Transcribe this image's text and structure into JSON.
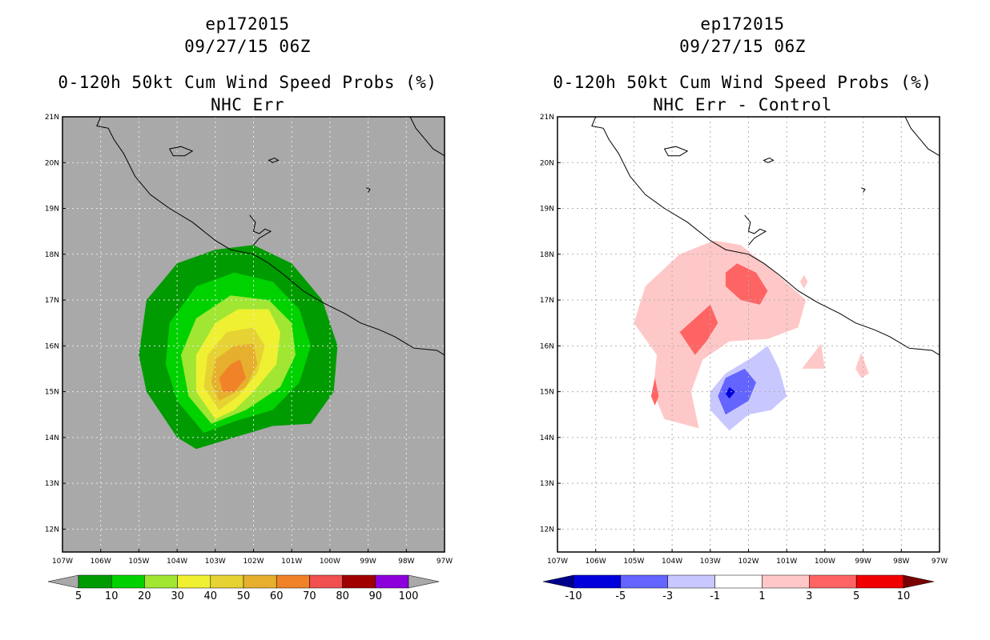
{
  "panels": [
    {
      "storm": "ep172015",
      "datetime": "09/27/15 06Z",
      "product": "0-120h 50kt Cum Wind Speed Probs (%)",
      "subtitle": "NHC Err",
      "background": "#a9a9a9",
      "grid_color": "#e8e8e8",
      "coast_color": "#000000"
    },
    {
      "storm": "ep172015",
      "datetime": "09/27/15 06Z",
      "product": "0-120h 50kt Cum Wind Speed Probs (%)",
      "subtitle": "NHC Err - Control",
      "background": "#ffffff",
      "grid_color": "#b0b0b0",
      "coast_color": "#000000"
    }
  ],
  "chart_data": [
    {
      "type": "filled-contour-map",
      "title": "0-120h 50kt Cum Wind Speed Probs (%)",
      "subtitle": "NHC Err",
      "xlim": [
        -107,
        -97
      ],
      "ylim": [
        11.5,
        21
      ],
      "x_tick_labels": [
        "107W",
        "106W",
        "105W",
        "104W",
        "103W",
        "102W",
        "101W",
        "100W",
        "99W",
        "98W",
        "97W"
      ],
      "y_tick_labels": [
        "12N",
        "13N",
        "14N",
        "15N",
        "16N",
        "17N",
        "18N",
        "19N",
        "20N",
        "21N"
      ],
      "colorbar": {
        "labels": [
          "5",
          "10",
          "20",
          "30",
          "40",
          "50",
          "60",
          "70",
          "80",
          "90",
          "100"
        ],
        "colors": [
          "#009b00",
          "#00d200",
          "#a0e632",
          "#f0f032",
          "#e6d232",
          "#e6af2d",
          "#f08228",
          "#f05050",
          "#a00000",
          "#8c00dc"
        ],
        "under_color": "#a9a9a9",
        "over_color": "#a9a9a9"
      },
      "contours": [
        {
          "level": 5,
          "color": "#009b00",
          "polygon": [
            [
              -103.5,
              13.75
            ],
            [
              -104.0,
              14.0
            ],
            [
              -104.8,
              15.0
            ],
            [
              -105.0,
              15.8
            ],
            [
              -104.8,
              17.0
            ],
            [
              -104.0,
              17.8
            ],
            [
              -103.0,
              18.1
            ],
            [
              -102.0,
              18.2
            ],
            [
              -101.0,
              17.8
            ],
            [
              -100.2,
              17.0
            ],
            [
              -99.8,
              16.0
            ],
            [
              -99.9,
              15.0
            ],
            [
              -100.5,
              14.3
            ],
            [
              -101.5,
              14.25
            ],
            [
              -102.5,
              14.0
            ]
          ]
        },
        {
          "level": 10,
          "color": "#00d200",
          "polygon": [
            [
              -103.3,
              14.1
            ],
            [
              -104.0,
              14.8
            ],
            [
              -104.3,
              15.6
            ],
            [
              -104.2,
              16.5
            ],
            [
              -103.5,
              17.3
            ],
            [
              -102.5,
              17.6
            ],
            [
              -101.5,
              17.4
            ],
            [
              -100.8,
              16.8
            ],
            [
              -100.5,
              16.0
            ],
            [
              -100.8,
              15.2
            ],
            [
              -101.5,
              14.6
            ],
            [
              -102.5,
              14.35
            ]
          ]
        },
        {
          "level": 20,
          "color": "#a0e632",
          "polygon": [
            [
              -103.1,
              14.3
            ],
            [
              -103.7,
              14.9
            ],
            [
              -103.9,
              15.8
            ],
            [
              -103.5,
              16.6
            ],
            [
              -102.6,
              17.1
            ],
            [
              -101.6,
              17.0
            ],
            [
              -101.0,
              16.5
            ],
            [
              -100.9,
              15.8
            ],
            [
              -101.3,
              15.1
            ],
            [
              -102.2,
              14.6
            ]
          ]
        },
        {
          "level": 30,
          "color": "#f0f032",
          "polygon": [
            [
              -103.0,
              14.4
            ],
            [
              -103.5,
              15.0
            ],
            [
              -103.5,
              15.8
            ],
            [
              -103.0,
              16.5
            ],
            [
              -102.4,
              16.8
            ],
            [
              -101.6,
              16.8
            ],
            [
              -101.3,
              16.3
            ],
            [
              -101.4,
              15.6
            ],
            [
              -102.0,
              15.0
            ],
            [
              -102.5,
              14.6
            ]
          ]
        },
        {
          "level": 40,
          "color": "#e6d232",
          "polygon": [
            [
              -102.9,
              14.6
            ],
            [
              -103.3,
              15.1
            ],
            [
              -103.2,
              15.8
            ],
            [
              -102.7,
              16.3
            ],
            [
              -102.0,
              16.4
            ],
            [
              -101.7,
              16.0
            ],
            [
              -101.9,
              15.4
            ],
            [
              -102.4,
              14.9
            ]
          ]
        },
        {
          "level": 50,
          "color": "#e6af2d",
          "polygon": [
            [
              -102.9,
              14.8
            ],
            [
              -103.1,
              15.2
            ],
            [
              -103.0,
              15.7
            ],
            [
              -102.5,
              16.0
            ],
            [
              -102.0,
              16.05
            ],
            [
              -101.9,
              15.6
            ],
            [
              -102.2,
              15.1
            ]
          ]
        },
        {
          "level": 60,
          "color": "#f08228",
          "polygon": [
            [
              -102.8,
              15.0
            ],
            [
              -102.9,
              15.3
            ],
            [
              -102.6,
              15.6
            ],
            [
              -102.35,
              15.7
            ],
            [
              -102.2,
              15.3
            ],
            [
              -102.5,
              15.0
            ]
          ]
        }
      ]
    },
    {
      "type": "filled-contour-map",
      "title": "0-120h 50kt Cum Wind Speed Probs (%)",
      "subtitle": "NHC Err - Control",
      "xlim": [
        -107,
        -97
      ],
      "ylim": [
        11.5,
        21
      ],
      "x_tick_labels": [
        "107W",
        "106W",
        "105W",
        "104W",
        "103W",
        "102W",
        "101W",
        "100W",
        "99W",
        "98W",
        "97W"
      ],
      "y_tick_labels": [
        "12N",
        "13N",
        "14N",
        "15N",
        "16N",
        "17N",
        "18N",
        "19N",
        "20N",
        "21N"
      ],
      "colorbar": {
        "labels": [
          "-10",
          "-5",
          "-3",
          "-1",
          "1",
          "3",
          "5",
          "10"
        ],
        "colors": [
          "#0000dc",
          "#6464ff",
          "#c8c8ff",
          "#ffffff",
          "#ffc8c8",
          "#ff6464",
          "#f00000"
        ],
        "under_color": "#00008c",
        "over_color": "#780000"
      },
      "contours": [
        {
          "level": 1,
          "color": "#ffc8c8",
          "polygon": [
            [
              -103.3,
              14.2
            ],
            [
              -104.2,
              14.4
            ],
            [
              -104.5,
              15.0
            ],
            [
              -104.4,
              15.8
            ],
            [
              -105.0,
              16.5
            ],
            [
              -104.7,
              17.3
            ],
            [
              -103.8,
              18.0
            ],
            [
              -102.9,
              18.3
            ],
            [
              -102.2,
              18.2
            ],
            [
              -101.3,
              17.6
            ],
            [
              -100.5,
              17.0
            ],
            [
              -100.7,
              16.4
            ],
            [
              -101.5,
              16.15
            ],
            [
              -102.5,
              16.1
            ],
            [
              -103.2,
              15.7
            ],
            [
              -103.5,
              15.0
            ]
          ]
        },
        {
          "level": 1,
          "color": "#ffc8c8",
          "polygon": [
            [
              -100.55,
              17.55
            ],
            [
              -100.45,
              17.4
            ],
            [
              -100.55,
              17.25
            ],
            [
              -100.65,
              17.4
            ]
          ]
        },
        {
          "level": 1,
          "color": "#ffc8c8",
          "polygon": [
            [
              -100.1,
              16.05
            ],
            [
              -100.6,
              15.5
            ],
            [
              -100.0,
              15.5
            ]
          ]
        },
        {
          "level": 1,
          "color": "#ffc8c8",
          "polygon": [
            [
              -99.05,
              15.85
            ],
            [
              -98.85,
              15.4
            ],
            [
              -99.05,
              15.3
            ],
            [
              -99.2,
              15.5
            ]
          ]
        },
        {
          "level": 3,
          "color": "#ff6464",
          "polygon": [
            [
              -103.8,
              16.3
            ],
            [
              -103.4,
              15.8
            ],
            [
              -103.1,
              16.1
            ],
            [
              -102.8,
              16.5
            ],
            [
              -103.0,
              16.9
            ],
            [
              -103.4,
              16.6
            ]
          ]
        },
        {
          "level": 3,
          "color": "#ff6464",
          "polygon": [
            [
              -102.6,
              17.3
            ],
            [
              -102.2,
              17.0
            ],
            [
              -101.7,
              16.9
            ],
            [
              -101.5,
              17.2
            ],
            [
              -101.8,
              17.6
            ],
            [
              -102.3,
              17.8
            ],
            [
              -102.6,
              17.6
            ]
          ]
        },
        {
          "level": 3,
          "color": "#ff6464",
          "polygon": [
            [
              -104.45,
              15.3
            ],
            [
              -104.35,
              14.9
            ],
            [
              -104.45,
              14.7
            ],
            [
              -104.55,
              14.9
            ]
          ]
        },
        {
          "level": -1,
          "color": "#c8c8ff",
          "polygon": [
            [
              -102.5,
              14.15
            ],
            [
              -103.0,
              14.6
            ],
            [
              -103.0,
              15.0
            ],
            [
              -102.6,
              15.4
            ],
            [
              -101.9,
              15.75
            ],
            [
              -101.5,
              16.0
            ],
            [
              -101.2,
              15.5
            ],
            [
              -101.0,
              14.9
            ],
            [
              -101.4,
              14.6
            ],
            [
              -102.0,
              14.5
            ]
          ]
        },
        {
          "level": -3,
          "color": "#6464ff",
          "polygon": [
            [
              -102.6,
              14.5
            ],
            [
              -102.8,
              14.9
            ],
            [
              -102.6,
              15.3
            ],
            [
              -102.1,
              15.5
            ],
            [
              -101.8,
              15.2
            ],
            [
              -102.0,
              14.8
            ]
          ]
        },
        {
          "level": -5,
          "color": "#0000dc",
          "polygon": [
            [
              -102.6,
              14.95
            ],
            [
              -102.5,
              15.1
            ],
            [
              -102.35,
              15.0
            ],
            [
              -102.5,
              14.85
            ]
          ]
        }
      ]
    }
  ]
}
